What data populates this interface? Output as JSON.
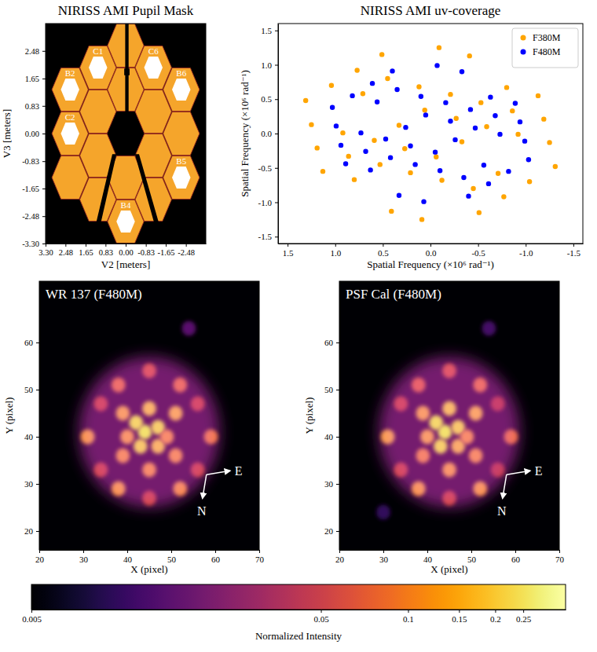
{
  "chart_data": [
    {
      "type": "pupil_mask",
      "title": "NIRISS AMI Pupil Mask",
      "xlabel": "V2 [meters]",
      "ylabel": "V3 [meters]",
      "xlim": [
        3.3,
        -3.3
      ],
      "ylim": [
        -3.3,
        3.3
      ],
      "xticks": [
        {
          "value": 3.3,
          "label": "3.30"
        },
        2.48,
        1.65,
        0.83,
        {
          "value": 0,
          "label": "0.00"
        },
        -0.83,
        -1.65,
        -2.48
      ],
      "yticks": [
        {
          "value": -3.3,
          "label": "-3.30"
        },
        -2.48,
        -1.65,
        -0.83,
        {
          "value": 0,
          "label": "0.00"
        },
        0.83,
        1.65,
        2.48
      ],
      "color": "#f5a52b",
      "segments": [
        {
          "x": 0,
          "y": 1.32
        },
        {
          "x": 0,
          "y": 2.64
        },
        {
          "x": 0,
          "y": -1.32
        },
        {
          "x": 0,
          "y": -2.64
        },
        {
          "x": 1.14,
          "y": 0.66
        },
        {
          "x": 1.14,
          "y": 1.98
        },
        {
          "x": 1.14,
          "y": -0.66
        },
        {
          "x": 1.14,
          "y": -1.98
        },
        {
          "x": -1.14,
          "y": 0.66
        },
        {
          "x": -1.14,
          "y": 1.98
        },
        {
          "x": -1.14,
          "y": -0.66
        },
        {
          "x": -1.14,
          "y": -1.98
        },
        {
          "x": 2.29,
          "y": 0
        },
        {
          "x": 2.29,
          "y": 1.32
        },
        {
          "x": 2.29,
          "y": -1.32
        },
        {
          "x": -2.29,
          "y": 0
        },
        {
          "x": -2.29,
          "y": 1.32
        },
        {
          "x": -2.29,
          "y": -1.32
        }
      ],
      "holes": [
        {
          "label": "C1",
          "x": 1.14,
          "y": 1.98
        },
        {
          "label": "B2",
          "x": 2.29,
          "y": 1.32
        },
        {
          "label": "C2",
          "x": 2.29,
          "y": 0
        },
        {
          "label": "C6",
          "x": -1.14,
          "y": 1.98
        },
        {
          "label": "B6",
          "x": -2.29,
          "y": 1.32
        },
        {
          "label": "B5",
          "x": -2.29,
          "y": -1.32
        },
        {
          "label": "B4",
          "x": 0,
          "y": -2.64
        }
      ]
    },
    {
      "type": "scatter",
      "title": "NIRISS AMI uv-coverage",
      "xlabel": "Spatial Frequency (×10⁶ rad⁻¹)",
      "ylabel": "Spatial Frequency (×10⁶ rad⁻¹)",
      "xlim": [
        1.6,
        -1.6
      ],
      "ylim": [
        -1.6,
        1.6
      ],
      "xticks": [
        1.5,
        {
          "value": 1,
          "label": "1.0"
        },
        0.5,
        {
          "value": 0,
          "label": "0.0"
        },
        -0.5,
        {
          "value": -1,
          "label": "-1.0"
        },
        -1.5
      ],
      "yticks": [
        -1.5,
        {
          "value": -1,
          "label": "-1.0"
        },
        -0.5,
        {
          "value": 0,
          "label": "0.0"
        },
        0.5,
        {
          "value": 1,
          "label": "1.0"
        },
        1.5
      ],
      "legend": "upper right",
      "marker": "circle",
      "series": [
        {
          "name": "F380M",
          "color": "#ffa500",
          "x": [
            -0.27,
            -0.21,
            0.59,
            0.92,
            1.04,
            0.51,
            0.06,
            0.86,
            1.19,
            1.31,
            0.77,
            0.8,
            1.13,
            1.25,
            0.71,
            0.33,
            0.45,
            -0.09,
            0.12,
            -0.41,
            -0.53,
            0.27,
            0.21,
            -0.59,
            -0.92,
            -1.04,
            -0.51,
            -0.06,
            -0.86,
            -1.19,
            -1.31,
            -0.77,
            -0.8,
            -1.13,
            -1.25,
            -0.71,
            -0.33,
            -0.45,
            0.09,
            -0.12,
            0.41,
            0.53
          ],
          "values": [
            0.22,
            0.57,
            -0.1,
            0.01,
            0.7,
            1.15,
            0.34,
            -0.33,
            -0.21,
            0.48,
            0.92,
            -0.67,
            -0.55,
            0.13,
            0.58,
            0.12,
            0.8,
            1.25,
            0.68,
            1.13,
            0.45,
            -0.22,
            -0.57,
            0.1,
            -0.01,
            -0.7,
            -1.15,
            -0.34,
            0.33,
            0.21,
            -0.48,
            -0.92,
            0.67,
            0.55,
            -0.13,
            -0.58,
            -0.12,
            -0.8,
            -1.25,
            -0.68,
            -1.13,
            -0.45
          ]
        },
        {
          "name": "F480M",
          "color": "#0000ff",
          "x": [
            -0.21,
            -0.16,
            0.47,
            0.73,
            0.82,
            0.4,
            0.05,
            0.68,
            0.94,
            1.03,
            0.61,
            0.63,
            0.89,
            0.99,
            0.56,
            0.26,
            0.35,
            -0.07,
            0.1,
            -0.33,
            -0.42,
            0.21,
            0.16,
            -0.47,
            -0.73,
            -0.82,
            -0.4,
            -0.05,
            -0.68,
            -0.94,
            -1.03,
            -0.61,
            -0.63,
            -0.89,
            -0.99,
            -0.56,
            -0.26,
            -0.35,
            0.07,
            -0.1,
            0.33,
            0.42
          ],
          "values": [
            0.18,
            0.45,
            -0.08,
            0.01,
            0.55,
            0.91,
            0.27,
            -0.26,
            -0.17,
            0.38,
            0.73,
            -0.53,
            -0.44,
            0.11,
            0.46,
            0.09,
            0.64,
            0.99,
            0.54,
            0.9,
            0.35,
            -0.18,
            -0.45,
            0.08,
            -0.01,
            -0.55,
            -0.91,
            -0.27,
            0.26,
            0.17,
            -0.38,
            -0.73,
            0.53,
            0.44,
            -0.11,
            -0.46,
            -0.09,
            -0.64,
            -0.99,
            -0.54,
            -0.9,
            -0.35
          ]
        }
      ]
    },
    {
      "type": "image",
      "title": "WR 137 (F480M)",
      "xlabel": "X (pixel)",
      "ylabel": "Y (pixel)",
      "xlim": [
        20,
        70
      ],
      "ylim": [
        16,
        73
      ],
      "xticks": [
        20,
        30,
        40,
        50,
        60,
        70
      ],
      "yticks": [
        20,
        30,
        40,
        50,
        60
      ],
      "annotations": [
        "E",
        "N"
      ],
      "envelope": {
        "x": 45,
        "y": 41,
        "radius": 16,
        "intensity": 0.02
      },
      "spots": [
        {
          "x": 44,
          "y": 41,
          "intensity": 0.25
        },
        {
          "x": 42,
          "y": 43,
          "intensity": 0.22
        },
        {
          "x": 47,
          "y": 42,
          "intensity": 0.21
        },
        {
          "x": 43,
          "y": 38,
          "intensity": 0.2
        },
        {
          "x": 47,
          "y": 38,
          "intensity": 0.17
        },
        {
          "x": 45,
          "y": 46,
          "intensity": 0.17
        },
        {
          "x": 39,
          "y": 45,
          "intensity": 0.14
        },
        {
          "x": 51,
          "y": 45,
          "intensity": 0.15
        },
        {
          "x": 39,
          "y": 36,
          "intensity": 0.12
        },
        {
          "x": 51,
          "y": 36,
          "intensity": 0.12
        },
        {
          "x": 45,
          "y": 33,
          "intensity": 0.12
        },
        {
          "x": 40,
          "y": 40,
          "intensity": 0.13
        },
        {
          "x": 49,
          "y": 40,
          "intensity": 0.12
        },
        {
          "x": 31,
          "y": 40,
          "intensity": 0.13
        },
        {
          "x": 59,
          "y": 40,
          "intensity": 0.1
        },
        {
          "x": 38,
          "y": 29,
          "intensity": 0.13
        },
        {
          "x": 52,
          "y": 29,
          "intensity": 0.12
        },
        {
          "x": 38,
          "y": 51,
          "intensity": 0.09
        },
        {
          "x": 52,
          "y": 51,
          "intensity": 0.09
        },
        {
          "x": 45,
          "y": 54,
          "intensity": 0.07
        },
        {
          "x": 45,
          "y": 27,
          "intensity": 0.06
        },
        {
          "x": 34,
          "y": 47,
          "intensity": 0.06
        },
        {
          "x": 56,
          "y": 47,
          "intensity": 0.06
        },
        {
          "x": 34,
          "y": 33,
          "intensity": 0.06
        },
        {
          "x": 56,
          "y": 33,
          "intensity": 0.06
        },
        {
          "x": 54,
          "y": 63,
          "intensity": 0.015
        }
      ]
    },
    {
      "type": "image",
      "title": "PSF Cal (F480M)",
      "xlabel": "X (pixel)",
      "ylabel": "Y (pixel)",
      "xlim": [
        20,
        70
      ],
      "ylim": [
        16,
        73
      ],
      "xticks": [
        20,
        30,
        40,
        50,
        60,
        70
      ],
      "yticks": [
        20,
        30,
        40,
        50,
        60
      ],
      "annotations": [
        "E",
        "N"
      ],
      "envelope": {
        "x": 45,
        "y": 41,
        "radius": 16,
        "intensity": 0.02
      },
      "spots": [
        {
          "x": 44,
          "y": 41,
          "intensity": 0.25
        },
        {
          "x": 42,
          "y": 43,
          "intensity": 0.23
        },
        {
          "x": 47,
          "y": 42,
          "intensity": 0.2
        },
        {
          "x": 43,
          "y": 38,
          "intensity": 0.21
        },
        {
          "x": 47,
          "y": 38,
          "intensity": 0.16
        },
        {
          "x": 45,
          "y": 46,
          "intensity": 0.18
        },
        {
          "x": 39,
          "y": 45,
          "intensity": 0.14
        },
        {
          "x": 51,
          "y": 45,
          "intensity": 0.15
        },
        {
          "x": 39,
          "y": 36,
          "intensity": 0.11
        },
        {
          "x": 51,
          "y": 36,
          "intensity": 0.12
        },
        {
          "x": 45,
          "y": 33,
          "intensity": 0.13
        },
        {
          "x": 40,
          "y": 40,
          "intensity": 0.14
        },
        {
          "x": 49,
          "y": 40,
          "intensity": 0.12
        },
        {
          "x": 31,
          "y": 40,
          "intensity": 0.14
        },
        {
          "x": 59,
          "y": 40,
          "intensity": 0.09
        },
        {
          "x": 38,
          "y": 29,
          "intensity": 0.13
        },
        {
          "x": 52,
          "y": 29,
          "intensity": 0.13
        },
        {
          "x": 38,
          "y": 51,
          "intensity": 0.08
        },
        {
          "x": 52,
          "y": 51,
          "intensity": 0.09
        },
        {
          "x": 45,
          "y": 54,
          "intensity": 0.07
        },
        {
          "x": 45,
          "y": 27,
          "intensity": 0.06
        },
        {
          "x": 34,
          "y": 47,
          "intensity": 0.06
        },
        {
          "x": 56,
          "y": 47,
          "intensity": 0.05
        },
        {
          "x": 34,
          "y": 33,
          "intensity": 0.06
        },
        {
          "x": 56,
          "y": 33,
          "intensity": 0.05
        },
        {
          "x": 54,
          "y": 63,
          "intensity": 0.012
        },
        {
          "x": 30,
          "y": 24,
          "intensity": 0.01
        }
      ]
    },
    {
      "type": "colorbar",
      "xlabel": "Normalized Intensity",
      "xlim": [
        0.005,
        0.35
      ],
      "xticks": [
        0.005,
        0.05,
        0.1,
        0.15,
        0.2,
        0.25
      ],
      "log": "x",
      "color": "inferno"
    }
  ]
}
